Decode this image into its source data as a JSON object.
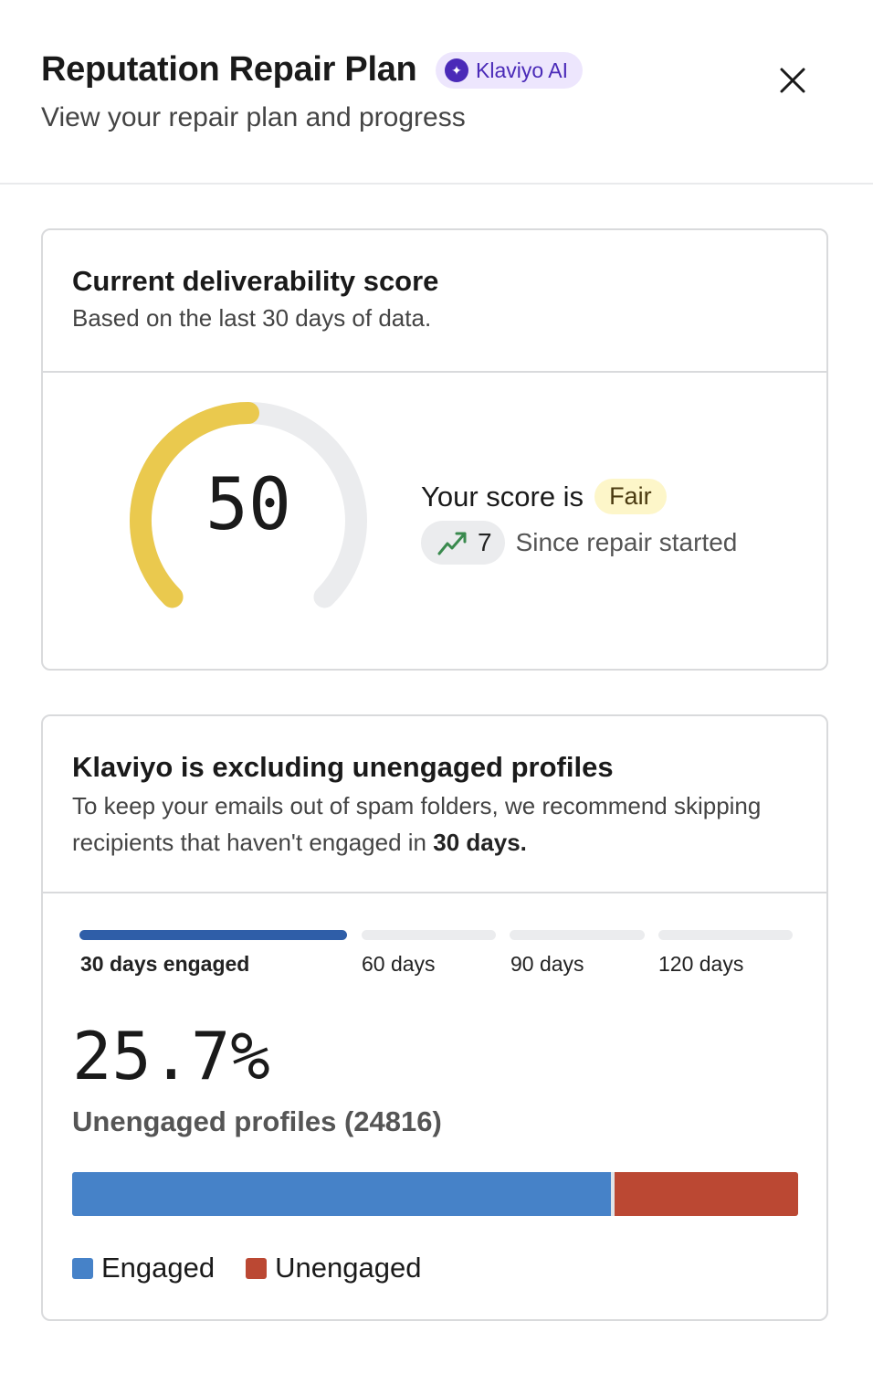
{
  "header": {
    "title": "Reputation Repair Plan",
    "badge": "Klaviyo AI",
    "subtitle": "View your repair plan and progress"
  },
  "score_card": {
    "title": "Current deliverability score",
    "description": "Based on the last 30 days of data.",
    "score": "50",
    "score_fraction": 0.5,
    "score_prefix": "Your score is",
    "rating": "Fair",
    "change": "7",
    "change_label": "Since repair started",
    "colors": {
      "gauge_fill": "#eac94e",
      "gauge_track": "#ebecee",
      "trend_icon": "#3a8a4e"
    }
  },
  "exclusion_card": {
    "title": "Klaviyo is excluding unengaged profiles",
    "description": "To keep your emails out of spam folders, we recommend skipping recipients that haven't engaged in",
    "description_bold": "30 days.",
    "segments": [
      {
        "label": "30 days engaged",
        "active": true
      },
      {
        "label": "60 days",
        "active": false
      },
      {
        "label": "90 days",
        "active": false
      },
      {
        "label": "120 days",
        "active": false
      }
    ],
    "percent": "25.7%",
    "unengaged_label": "Unengaged profiles (24816)",
    "bar": {
      "engaged_pct": 74.3,
      "unengaged_pct": 25.7
    },
    "legend": {
      "engaged": "Engaged",
      "unengaged": "Unengaged"
    },
    "colors": {
      "engaged": "#4682c8",
      "unengaged": "#bb4833",
      "active_segment": "#2f5ea8"
    }
  }
}
